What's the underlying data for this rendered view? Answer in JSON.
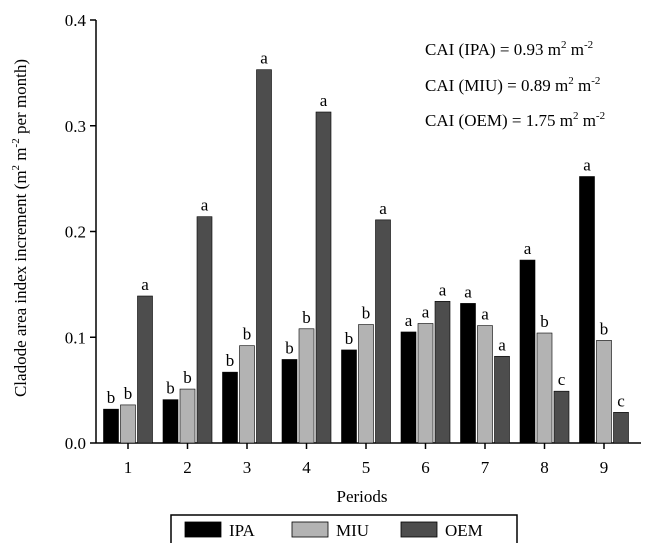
{
  "chart_data": {
    "type": "bar",
    "xlabel": "Periods",
    "ylabel": "Cladode area index increment (m² m⁻² per month)",
    "ylim": [
      0,
      0.4
    ],
    "yticks": [
      "0.0",
      "0.1",
      "0.2",
      "0.3",
      "0.4"
    ],
    "categories": [
      "1",
      "2",
      "3",
      "4",
      "5",
      "6",
      "7",
      "8",
      "9"
    ],
    "grid": false,
    "legend_position": "bottom",
    "series": [
      {
        "name": "IPA",
        "color": "#000000",
        "values": [
          0.032,
          0.041,
          0.067,
          0.079,
          0.088,
          0.105,
          0.132,
          0.173,
          0.252
        ],
        "letters": [
          "b",
          "b",
          "b",
          "b",
          "b",
          "a",
          "a",
          "a",
          "a"
        ]
      },
      {
        "name": "MIU",
        "color": "#b3b3b3",
        "values": [
          0.036,
          0.051,
          0.092,
          0.108,
          0.112,
          0.113,
          0.111,
          0.104,
          0.097
        ],
        "letters": [
          "b",
          "b",
          "b",
          "b",
          "b",
          "a",
          "a",
          "b",
          "b"
        ]
      },
      {
        "name": "OEM",
        "color": "#4d4d4d",
        "values": [
          0.139,
          0.214,
          0.353,
          0.313,
          0.211,
          0.134,
          0.082,
          0.049,
          0.029
        ],
        "letters": [
          "a",
          "a",
          "a",
          "a",
          "a",
          "a",
          "a",
          "c",
          "c"
        ]
      }
    ],
    "annotations": [
      {
        "label": "CAI (IPA) = 0.93",
        "unit_base": "m",
        "exp1": "2",
        "unit_mid": "m",
        "exp2": "-2"
      },
      {
        "label": "CAI (MIU) = 0.89",
        "unit_base": "m",
        "exp1": "2",
        "unit_mid": "m",
        "exp2": "-2"
      },
      {
        "label": "CAI (OEM) = 1.75",
        "unit_base": "m",
        "exp1": "2",
        "unit_mid": "m",
        "exp2": "-2"
      }
    ]
  }
}
